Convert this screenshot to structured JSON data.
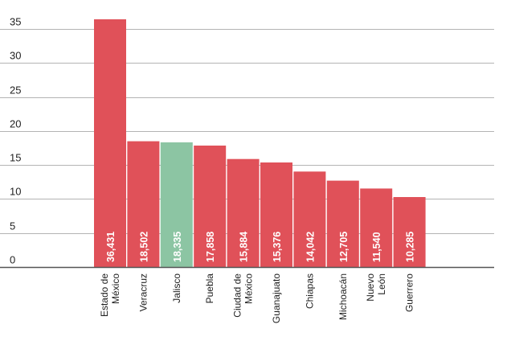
{
  "chart_data": {
    "type": "bar",
    "categories": [
      [
        "Estado de",
        "México"
      ],
      [
        "Veracruz"
      ],
      [
        "Jalisco"
      ],
      [
        "Puebla"
      ],
      [
        "Ciudad de",
        "México"
      ],
      [
        "Guanajuato"
      ],
      [
        "Chiapas"
      ],
      [
        "Michoacán"
      ],
      [
        "Nuevo",
        "León"
      ],
      [
        "Guerrero"
      ]
    ],
    "values": [
      36.431,
      18.502,
      18.335,
      17.858,
      15.884,
      15.376,
      14.042,
      12.705,
      11.54,
      10.285
    ],
    "data_labels": [
      "36,431",
      "18,502",
      "18,335",
      "17,858",
      "15,884",
      "15,376",
      "14,042",
      "12,705",
      "11,540",
      "10,285"
    ],
    "yticks": [
      0,
      5,
      10,
      15,
      20,
      25,
      30,
      35
    ],
    "ylim": [
      0,
      36.431
    ],
    "title": "",
    "xlabel": "",
    "ylabel": "",
    "grid": true,
    "colors": {
      "default": "#e05159",
      "highlight": "#8cc5a3",
      "highlight_index": 2,
      "grid": "#b4b4b4",
      "axis": "#555555",
      "text": "#222222",
      "label": "#ffffff"
    }
  }
}
